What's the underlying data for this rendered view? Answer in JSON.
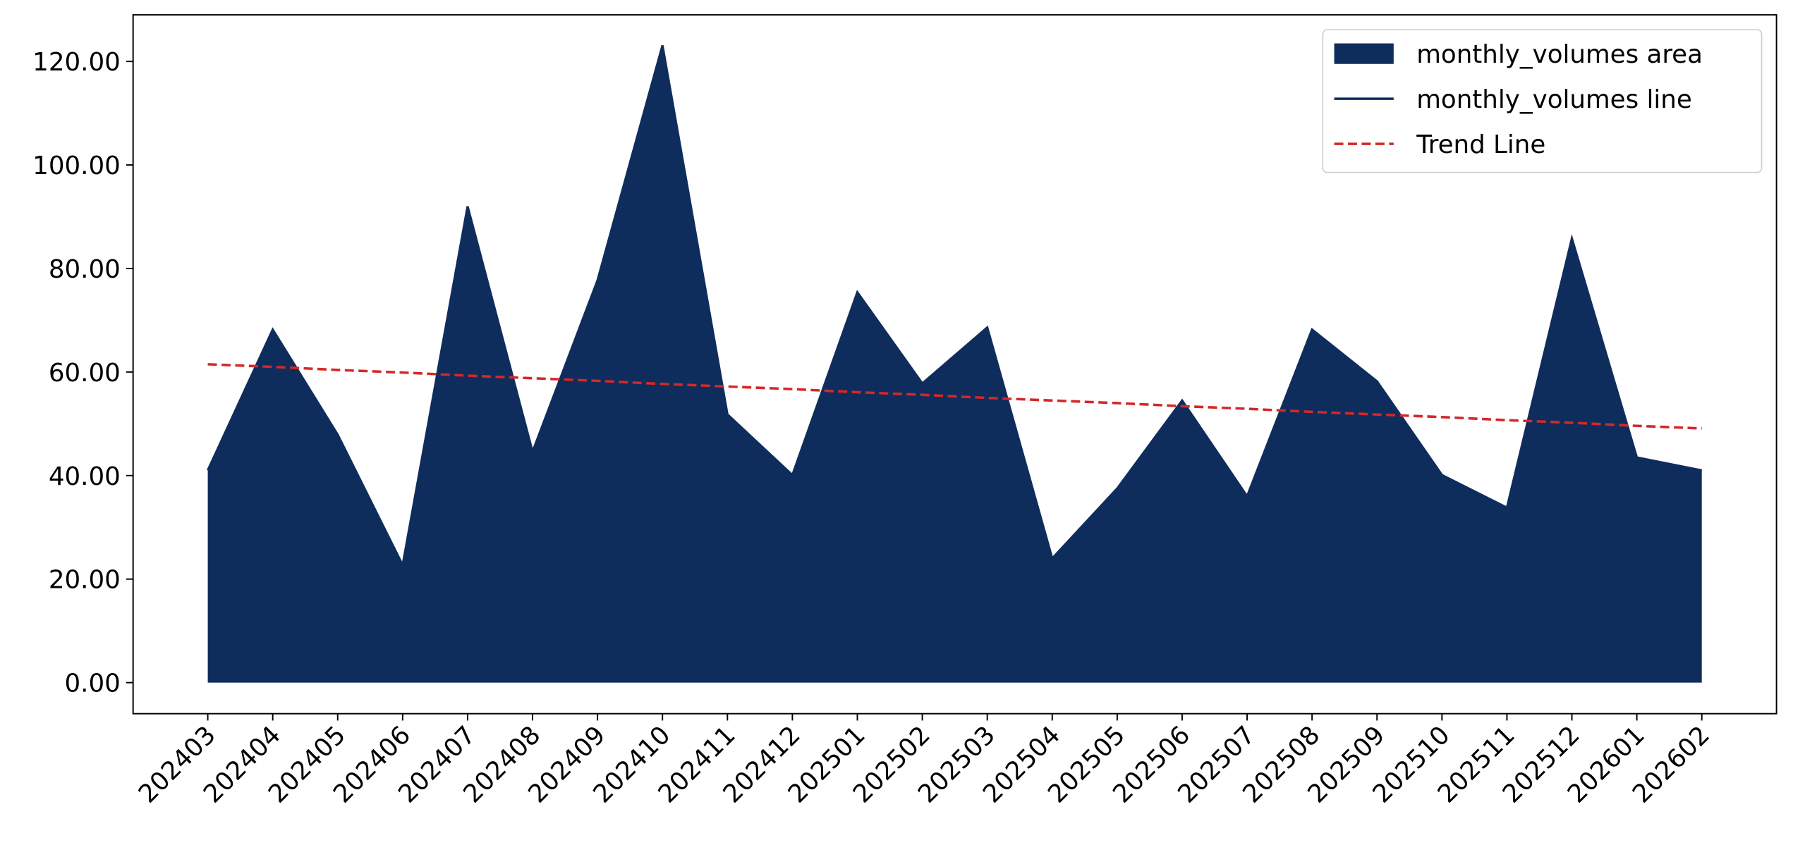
{
  "chart_data": {
    "type": "area",
    "categories": [
      "202403",
      "202404",
      "202405",
      "202406",
      "202407",
      "202408",
      "202409",
      "202410",
      "202411",
      "202412",
      "202501",
      "202502",
      "202503",
      "202504",
      "202505",
      "202506",
      "202507",
      "202508",
      "202509",
      "202510",
      "202511",
      "202512",
      "202601",
      "202602"
    ],
    "series": [
      {
        "name": "monthly_volumes area",
        "color": "#0f2d5c",
        "kind": "area",
        "values": [
          41.0,
          68.2,
          47.9,
          22.7,
          92.0,
          44.6,
          77.7,
          123.1,
          51.8,
          40.1,
          75.4,
          57.8,
          68.6,
          24.0,
          37.5,
          54.5,
          36.0,
          68.2,
          58.2,
          40.1,
          33.8,
          85.8,
          43.5,
          41.0
        ]
      },
      {
        "name": "monthly_volumes line",
        "color": "#0f2d5c",
        "kind": "line",
        "values": [
          41.0,
          68.2,
          47.9,
          22.7,
          92.0,
          44.6,
          77.7,
          123.1,
          51.8,
          40.1,
          75.4,
          57.8,
          68.6,
          24.0,
          37.5,
          54.5,
          36.0,
          68.2,
          58.2,
          40.1,
          33.8,
          85.8,
          43.5,
          41.0
        ]
      },
      {
        "name": "Trend Line",
        "color": "#d62728",
        "kind": "dashed",
        "values": [
          61.5,
          61.0,
          60.4,
          59.9,
          59.3,
          58.8,
          58.3,
          57.7,
          57.2,
          56.7,
          56.1,
          55.6,
          55.0,
          54.5,
          54.0,
          53.4,
          52.9,
          52.3,
          51.8,
          51.3,
          50.7,
          50.2,
          49.6,
          49.1
        ]
      }
    ],
    "ylim": [
      -6.0,
      129.0
    ],
    "yticks": [
      {
        "value": 0,
        "label": "0.00"
      },
      {
        "value": 20,
        "label": "20.00"
      },
      {
        "value": 40,
        "label": "40.00"
      },
      {
        "value": 60,
        "label": "60.00"
      },
      {
        "value": 80,
        "label": "80.00"
      },
      {
        "value": 100,
        "label": "100.00"
      },
      {
        "value": 120,
        "label": "120.00"
      }
    ],
    "grid": false,
    "legend": "upper right"
  }
}
